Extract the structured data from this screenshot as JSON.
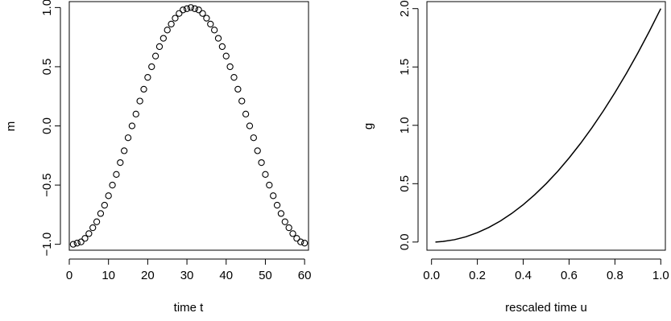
{
  "chart_data": [
    {
      "type": "scatter",
      "title": "",
      "xlabel": "time t",
      "ylabel": "m",
      "xlim": [
        0,
        61
      ],
      "ylim": [
        -1.05,
        1.05
      ],
      "xticks": [
        "0",
        "10",
        "20",
        "30",
        "40",
        "50",
        "60"
      ],
      "yticks": [
        "-1.0",
        "-0.5",
        "0.0",
        "0.5",
        "1.0"
      ],
      "grid": false,
      "legend": "none",
      "marker": "open-circle",
      "x": [
        1,
        2,
        3,
        4,
        5,
        6,
        7,
        8,
        9,
        10,
        11,
        12,
        13,
        14,
        15,
        16,
        17,
        18,
        19,
        20,
        21,
        22,
        23,
        24,
        25,
        26,
        27,
        28,
        29,
        30,
        31,
        32,
        33,
        34,
        35,
        36,
        37,
        38,
        39,
        40,
        41,
        42,
        43,
        44,
        45,
        46,
        47,
        48,
        49,
        50,
        51,
        52,
        53,
        54,
        55,
        56,
        57,
        58,
        59,
        60
      ],
      "y": [
        -1.0,
        -0.99,
        -0.98,
        -0.95,
        -0.91,
        -0.86,
        -0.81,
        -0.74,
        -0.67,
        -0.59,
        -0.5,
        -0.41,
        -0.31,
        -0.21,
        -0.1,
        0.0,
        0.1,
        0.21,
        0.31,
        0.41,
        0.5,
        0.59,
        0.67,
        0.74,
        0.81,
        0.86,
        0.91,
        0.95,
        0.98,
        0.99,
        1.0,
        0.99,
        0.98,
        0.95,
        0.91,
        0.86,
        0.81,
        0.74,
        0.67,
        0.59,
        0.5,
        0.41,
        0.31,
        0.21,
        0.1,
        0.0,
        -0.1,
        -0.21,
        -0.31,
        -0.41,
        -0.5,
        -0.59,
        -0.67,
        -0.74,
        -0.81,
        -0.86,
        -0.91,
        -0.95,
        -0.98,
        -0.99
      ]
    },
    {
      "type": "line",
      "title": "",
      "xlabel": "rescaled time u",
      "ylabel": "g",
      "xlim": [
        -0.02,
        1.02
      ],
      "ylim": [
        -0.07,
        2.06
      ],
      "xticks": [
        "0.0",
        "0.2",
        "0.4",
        "0.6",
        "0.8",
        "1.0"
      ],
      "yticks": [
        "0.0",
        "0.5",
        "1.0",
        "1.5",
        "2.0"
      ],
      "grid": false,
      "legend": "none",
      "x": [
        0.017,
        0.05,
        0.1,
        0.15,
        0.2,
        0.25,
        0.3,
        0.35,
        0.4,
        0.45,
        0.5,
        0.55,
        0.6,
        0.65,
        0.7,
        0.75,
        0.8,
        0.85,
        0.9,
        0.95,
        1.0
      ],
      "y": [
        0.0,
        0.005,
        0.02,
        0.045,
        0.08,
        0.125,
        0.18,
        0.245,
        0.32,
        0.405,
        0.5,
        0.605,
        0.72,
        0.845,
        0.98,
        1.125,
        1.28,
        1.445,
        1.62,
        1.805,
        2.0
      ]
    }
  ]
}
